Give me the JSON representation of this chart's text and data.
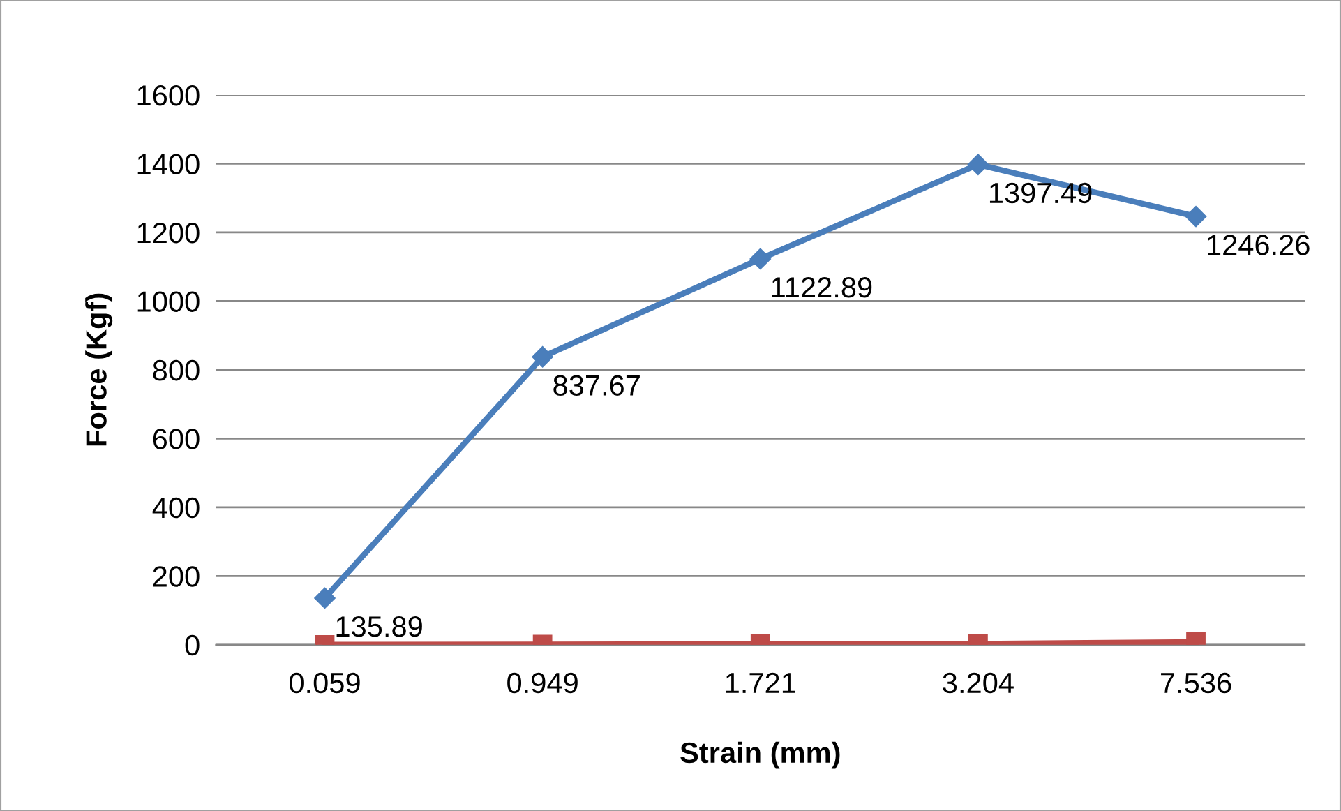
{
  "chart_data": {
    "type": "line",
    "xlabel": "Strain (mm)",
    "ylabel": "Force (Kgf)",
    "categories": [
      "0.059",
      "0.949",
      "1.721",
      "3.204",
      "7.536"
    ],
    "series": [
      {
        "color": "#4a7ebb",
        "marker": "diamond",
        "values": [
          135.89,
          837.67,
          1122.89,
          1397.49,
          1246.26
        ],
        "value_labels": [
          "135.89",
          "837.67",
          "1122.89",
          "1397.49",
          "1246.26"
        ]
      },
      {
        "color": "#be4b48",
        "marker": "square",
        "values": [
          0,
          1,
          2,
          3,
          8
        ]
      }
    ],
    "ylim": [
      0,
      1600
    ],
    "yticks": [
      0,
      200,
      400,
      600,
      800,
      1000,
      1200,
      1400,
      1600
    ],
    "grid": "y",
    "legend": false
  }
}
